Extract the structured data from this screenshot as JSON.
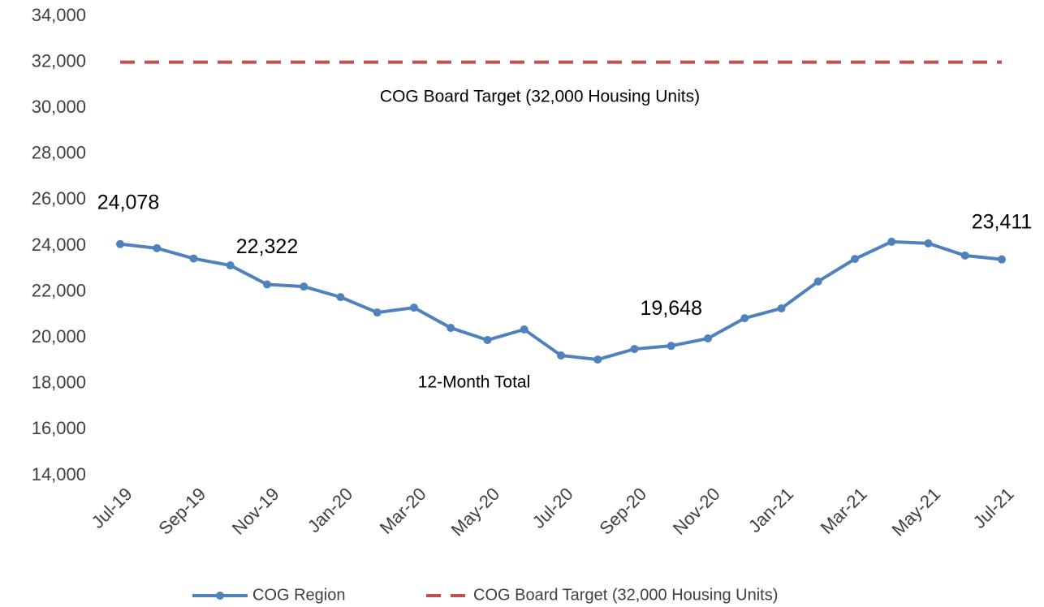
{
  "chart_data": {
    "type": "line",
    "categories": [
      "Jul-19",
      null,
      "Sep-19",
      null,
      "Nov-19",
      null,
      "Jan-20",
      null,
      "Mar-20",
      null,
      "May-20",
      null,
      "Jul-20",
      null,
      "Sep-20",
      null,
      "Nov-20",
      null,
      "Jan-21",
      null,
      "Mar-21",
      null,
      "May-21",
      null,
      "Jul-21"
    ],
    "series": [
      {
        "name": "COG Region",
        "color": "#4f81bd",
        "values": [
          24078,
          23900,
          23450,
          23150,
          22322,
          22230,
          21770,
          21100,
          21310,
          20430,
          19900,
          20360,
          19230,
          19050,
          19510,
          19648,
          19970,
          20850,
          21280,
          22450,
          23430,
          24180,
          24110,
          23580,
          23411
        ],
        "value_labels": [
          "24,078",
          null,
          null,
          null,
          "22,322",
          null,
          null,
          null,
          null,
          null,
          null,
          null,
          null,
          null,
          null,
          "19,648",
          null,
          null,
          null,
          null,
          null,
          null,
          null,
          null,
          "23,411"
        ]
      },
      {
        "name": "COG Board Target (32,000 Housing Units)",
        "color": "#c0504d",
        "dashed": true,
        "values": [
          32000,
          32000,
          32000,
          32000,
          32000,
          32000,
          32000,
          32000,
          32000,
          32000,
          32000,
          32000,
          32000,
          32000,
          32000,
          32000,
          32000,
          32000,
          32000,
          32000,
          32000,
          32000,
          32000,
          32000,
          32000
        ]
      }
    ],
    "annotations": [
      "COG Board Target (32,000 Housing Units)",
      "12-Month Total"
    ],
    "ylim": [
      14000,
      34000
    ],
    "yticks": [
      {
        "value": 14000,
        "label": "14,000"
      },
      {
        "value": 16000,
        "label": "16,000"
      },
      {
        "value": 18000,
        "label": "18,000"
      },
      {
        "value": 20000,
        "label": "20,000"
      },
      {
        "value": 22000,
        "label": "22,000"
      },
      {
        "value": 24000,
        "label": "24,000"
      },
      {
        "value": 26000,
        "label": "26,000"
      },
      {
        "value": 28000,
        "label": "28,000"
      },
      {
        "value": 30000,
        "label": "30,000"
      },
      {
        "value": 32000,
        "label": "32,000"
      },
      {
        "value": 34000,
        "label": "34,000"
      }
    ],
    "legend": "bottom"
  }
}
